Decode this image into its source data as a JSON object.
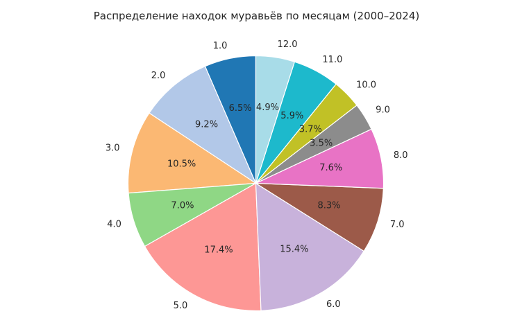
{
  "page": {
    "background": "#ffffff",
    "text_color": "#262626"
  },
  "chart_data": {
    "type": "pie",
    "title": "Распределение находок муравьёв по месяцам (2000–2024)",
    "labels": [
      "1.0",
      "2.0",
      "3.0",
      "4.0",
      "5.0",
      "6.0",
      "7.0",
      "8.0",
      "9.0",
      "10.0",
      "11.0",
      "12.0"
    ],
    "values": [
      6.5,
      9.2,
      10.5,
      7.0,
      17.4,
      15.4,
      8.3,
      7.6,
      3.5,
      3.7,
      5.9,
      4.9
    ],
    "pct_labels": [
      "6.5%",
      "9.2%",
      "10.5%",
      "7.0%",
      "17.4%",
      "15.4%",
      "8.3%",
      "7.6%",
      "3.5%",
      "3.7%",
      "5.9%",
      "4.9%"
    ],
    "colors": [
      "#2077b4",
      "#b2c8e8",
      "#fbb873",
      "#8fd785",
      "#fd9795",
      "#c8b2db",
      "#9c5a49",
      "#e873c5",
      "#8c8c8c",
      "#c1c126",
      "#1db9cc",
      "#a8dce8"
    ],
    "start_angle": 90,
    "counterclock": true,
    "label_distance": 1.1,
    "pct_distance": 0.6,
    "wedge_edge_color": "#ffffff",
    "wedge_edge_width": 1.2,
    "text_color": "#262626",
    "legend": "none",
    "xlabel": "",
    "ylabel": ""
  }
}
